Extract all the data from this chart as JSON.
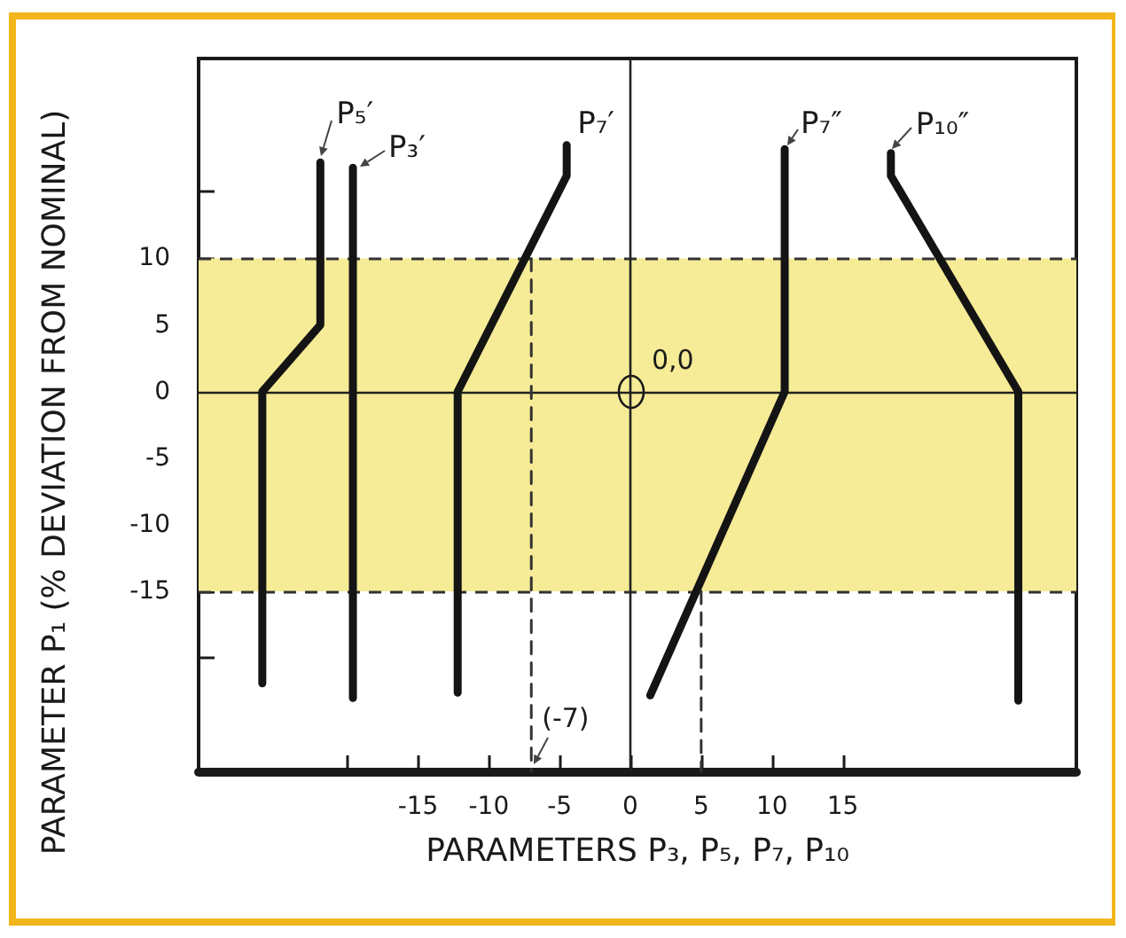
{
  "chart_data": {
    "type": "line",
    "xlabel": "PARAMETERS P₃, P₅, P₇, P₁₀",
    "ylabel": "PARAMETER P₁ (% DEVIATION FROM NOMINAL)",
    "xlim": [
      -30.5,
      31.5
    ],
    "xticks": [
      {
        "value": -20,
        "label": null
      },
      -15,
      -10,
      -5,
      0,
      5,
      10,
      15
    ],
    "ylim": [
      -28.5,
      25
    ],
    "yticks": [
      {
        "value": 15,
        "label": null
      },
      10,
      5,
      0,
      -5,
      -10,
      -15,
      {
        "value": -20,
        "label": null
      }
    ],
    "marker": "none",
    "line_style": "solid",
    "series": [
      {
        "name": "P₅′",
        "color": "#141414",
        "x": [
          -21.9,
          -21.9,
          -26,
          -26
        ],
        "values": [
          17.2,
          5,
          0,
          -21.9
        ]
      },
      {
        "name": "P₃′",
        "color": "#141414",
        "x": [
          -19.6,
          -19.6
        ],
        "values": [
          16.8,
          -23
        ]
      },
      {
        "name": "P₇′",
        "color": "#141414",
        "x": [
          -4.5,
          -4.5,
          -12.2,
          -12.2
        ],
        "values": [
          18.5,
          16.2,
          0,
          -22.6
        ]
      },
      {
        "name": "P₇″",
        "color": "#141414",
        "x": [
          10.9,
          10.9,
          1.4
        ],
        "values": [
          18.2,
          0,
          -22.8
        ]
      },
      {
        "name": "P₁₀″",
        "color": "#141414",
        "x": [
          18.4,
          18.4,
          27.4,
          27.4
        ],
        "values": [
          17.9,
          16.2,
          0,
          -23.2
        ]
      },
      {
        "color": "#333333",
        "line_style": "dashed",
        "x": [
          -7,
          -7
        ],
        "values": [
          10,
          -28.5
        ]
      },
      {
        "color": "#333333",
        "line_style": "dashed",
        "x": [
          5,
          5
        ],
        "values": [
          -15,
          -28.5
        ]
      }
    ],
    "bands": [
      {
        "axis": "y",
        "from": -15,
        "to": 10,
        "color": "#f6eb96"
      }
    ],
    "ref_lines": [
      {
        "axis": "y",
        "value": 10,
        "line_style": "dashed",
        "color": "#333333"
      },
      {
        "axis": "y",
        "value": -15,
        "line_style": "dashed",
        "color": "#333333"
      },
      {
        "axis": "x",
        "value": 0,
        "color": "#222222"
      },
      {
        "axis": "y",
        "value": 0,
        "color": "#222222"
      }
    ],
    "annotations": [
      {
        "text": "0,0",
        "x": 0,
        "y": 0
      },
      {
        "text": "(-7)",
        "x": -7
      }
    ]
  }
}
